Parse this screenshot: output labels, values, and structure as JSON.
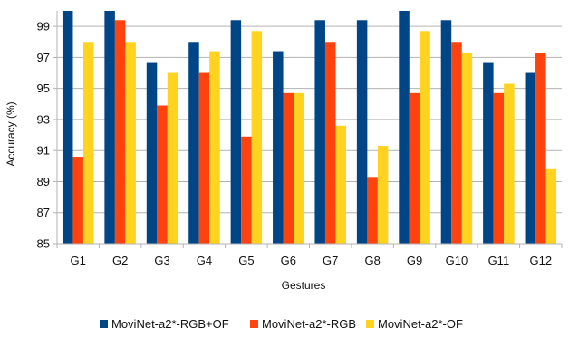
{
  "chart_data": {
    "type": "bar",
    "title": "",
    "xlabel": "Gestures",
    "ylabel": "Accuracy (%)",
    "ylim": [
      85,
      100
    ],
    "yticks": [
      85,
      87,
      89,
      91,
      93,
      95,
      97,
      99
    ],
    "grid": "horizontal",
    "legend_position": "bottom",
    "categories": [
      "G1",
      "G2",
      "G3",
      "G4",
      "G5",
      "G6",
      "G7",
      "G8",
      "G9",
      "G10",
      "G11",
      "G12"
    ],
    "series": [
      {
        "name": "MoviNet-a2*-RGB+OF",
        "color": "#004586",
        "values": [
          100,
          100,
          96.7,
          98.0,
          99.4,
          97.4,
          99.4,
          99.4,
          100,
          99.4,
          96.7,
          96.0
        ]
      },
      {
        "name": "MoviNet-a2*-RGB",
        "color": "#ff420e",
        "values": [
          90.6,
          99.4,
          93.9,
          96.0,
          91.9,
          94.7,
          98.0,
          89.3,
          94.7,
          98.0,
          94.7,
          97.3
        ]
      },
      {
        "name": "MoviNet-a2*-OF",
        "color": "#ffd320",
        "values": [
          98.0,
          98.0,
          96.0,
          97.4,
          98.7,
          94.7,
          92.6,
          91.3,
          98.7,
          97.3,
          95.3,
          89.8
        ]
      }
    ]
  }
}
